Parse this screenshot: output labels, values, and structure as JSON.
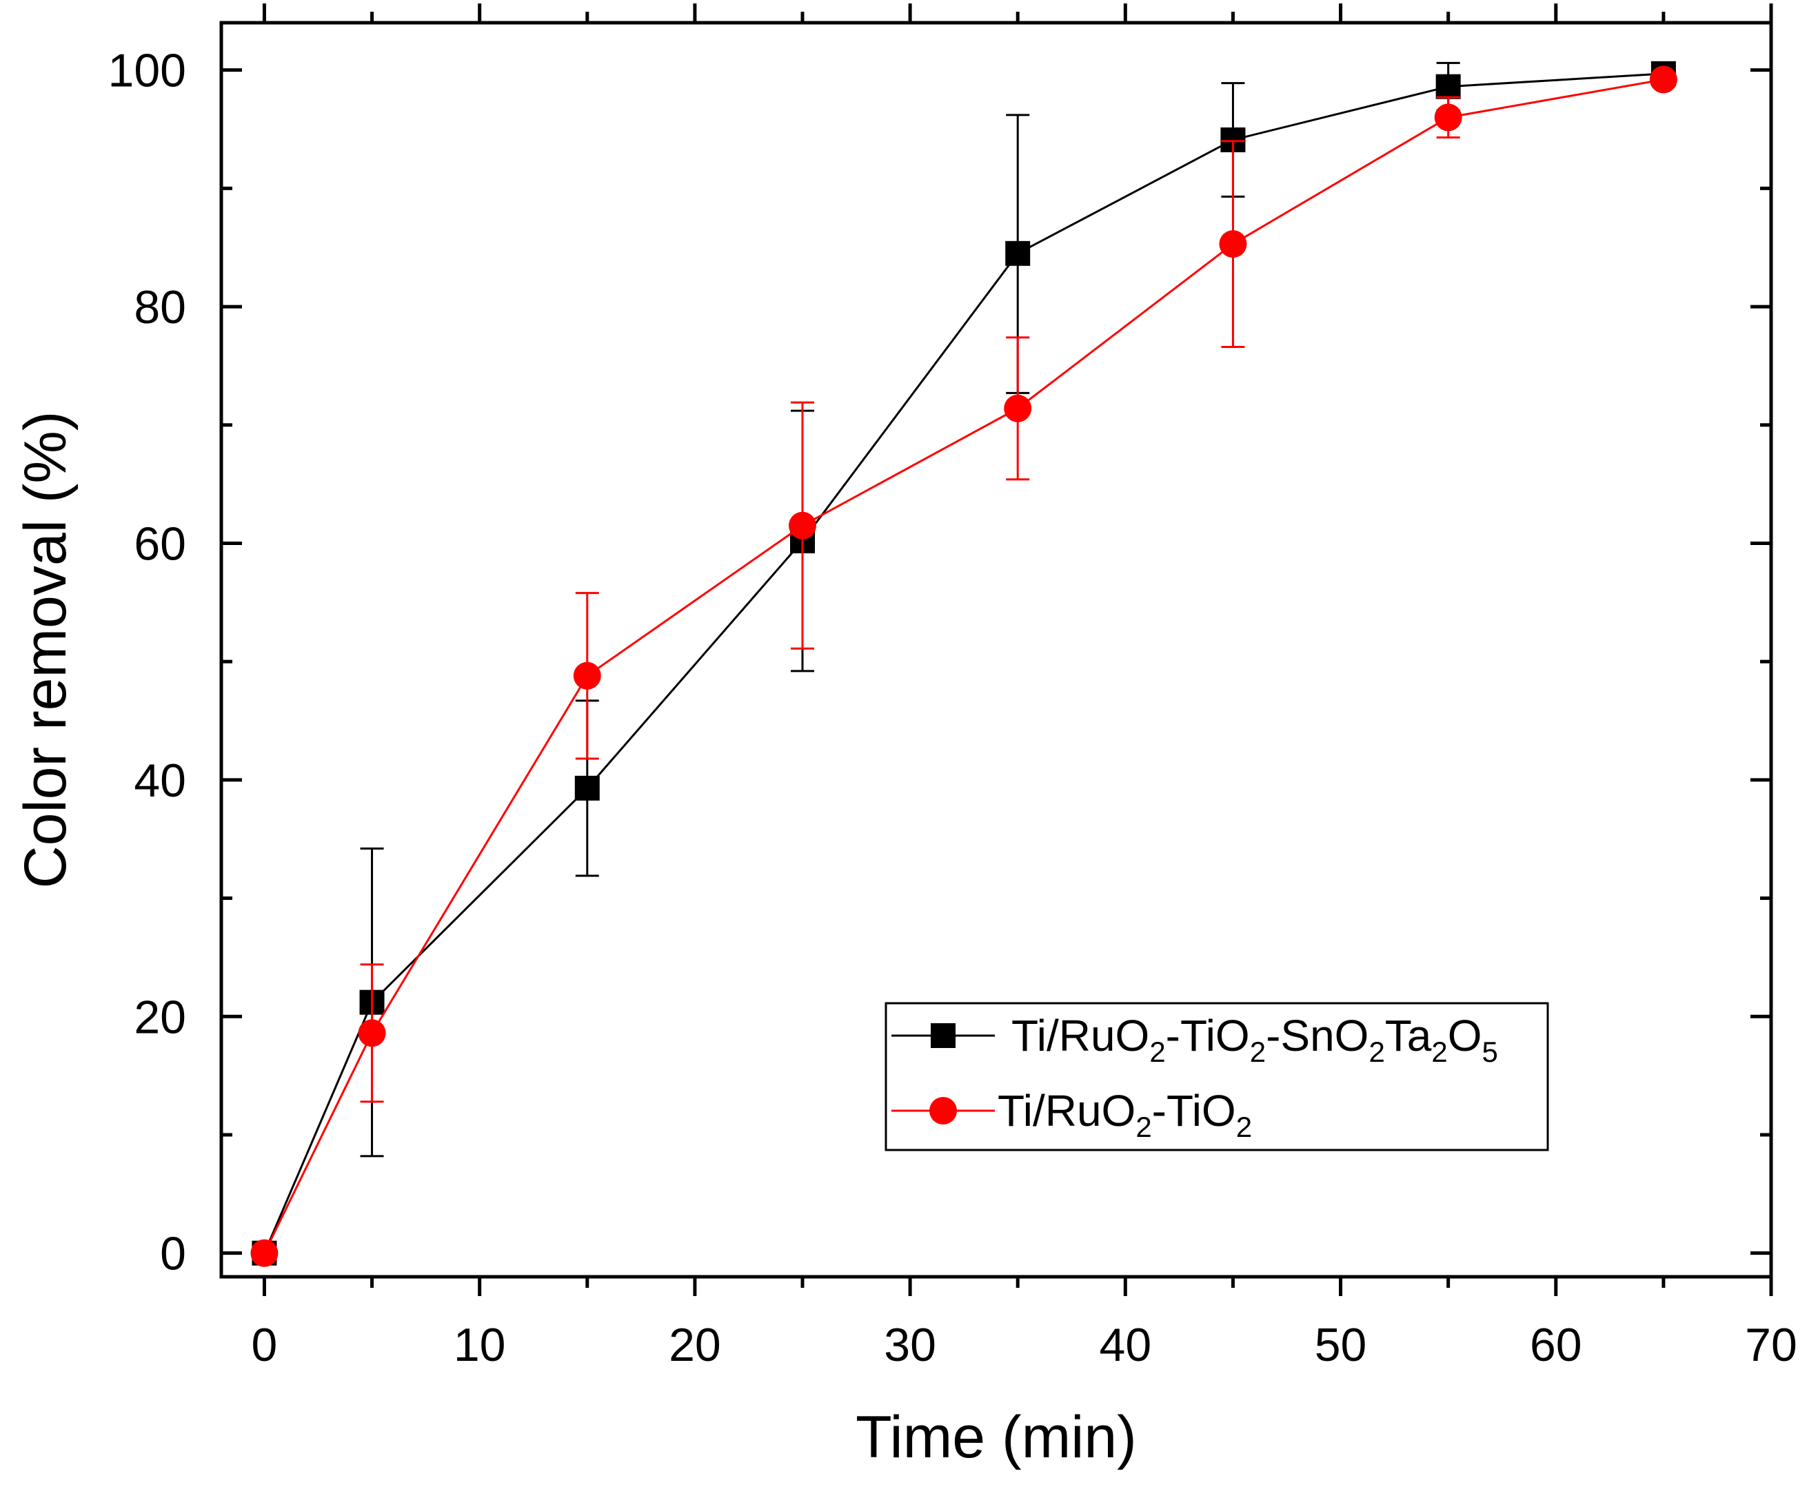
{
  "chart_data": {
    "type": "line",
    "title": "",
    "xlabel": "Time (min)",
    "ylabel": "Color removal (%)",
    "xlim": [
      -2,
      70
    ],
    "ylim": [
      -2,
      104
    ],
    "xticks": [
      0,
      10,
      20,
      30,
      40,
      50,
      60,
      70
    ],
    "yticks": [
      0,
      20,
      40,
      60,
      80,
      100
    ],
    "xtick_labels": [
      "0",
      "10",
      "20",
      "30",
      "40",
      "50",
      "60",
      "70"
    ],
    "ytick_labels": [
      "0",
      "20",
      "40",
      "60",
      "80",
      "100"
    ],
    "legend_position": "bottom-right",
    "series": [
      {
        "name": "Ti/RuO2-TiO2-SnO2Ta2O5",
        "legend_parts": [
          {
            "text": "Ti/RuO",
            "sub": false
          },
          {
            "text": "2",
            "sub": true
          },
          {
            "text": "-TiO",
            "sub": false
          },
          {
            "text": "2",
            "sub": true
          },
          {
            "text": "-SnO",
            "sub": false
          },
          {
            "text": "2",
            "sub": true
          },
          {
            "text": "Ta",
            "sub": false
          },
          {
            "text": "2",
            "sub": true
          },
          {
            "text": "O",
            "sub": false
          },
          {
            "text": "5",
            "sub": true
          }
        ],
        "color": "#000000",
        "marker": "square",
        "x": [
          0,
          5,
          15,
          25,
          35,
          45,
          55,
          65
        ],
        "y": [
          0,
          21.2,
          39.3,
          60.2,
          84.5,
          94.1,
          98.6,
          99.7
        ],
        "err_low": [
          0,
          13.0,
          7.4,
          11.0,
          11.8,
          4.8,
          2.0,
          0.5
        ],
        "err_high": [
          0,
          13.0,
          7.4,
          11.0,
          11.7,
          4.8,
          2.0,
          0.5
        ]
      },
      {
        "name": "Ti/RuO2-TiO2",
        "legend_parts": [
          {
            "text": "Ti/RuO",
            "sub": false
          },
          {
            "text": "2",
            "sub": true
          },
          {
            "text": "-TiO",
            "sub": false
          },
          {
            "text": "2",
            "sub": true
          }
        ],
        "color": "#ff0000",
        "marker": "circle",
        "x": [
          0,
          5,
          15,
          25,
          35,
          45,
          55,
          65
        ],
        "y": [
          0,
          18.6,
          48.8,
          61.5,
          71.4,
          85.3,
          96.0,
          99.2
        ],
        "err_low": [
          0,
          5.8,
          7.0,
          10.4,
          6.0,
          8.7,
          1.7,
          0.5
        ],
        "err_high": [
          0,
          5.8,
          7.0,
          10.4,
          6.0,
          8.7,
          1.7,
          0.5
        ]
      }
    ]
  }
}
